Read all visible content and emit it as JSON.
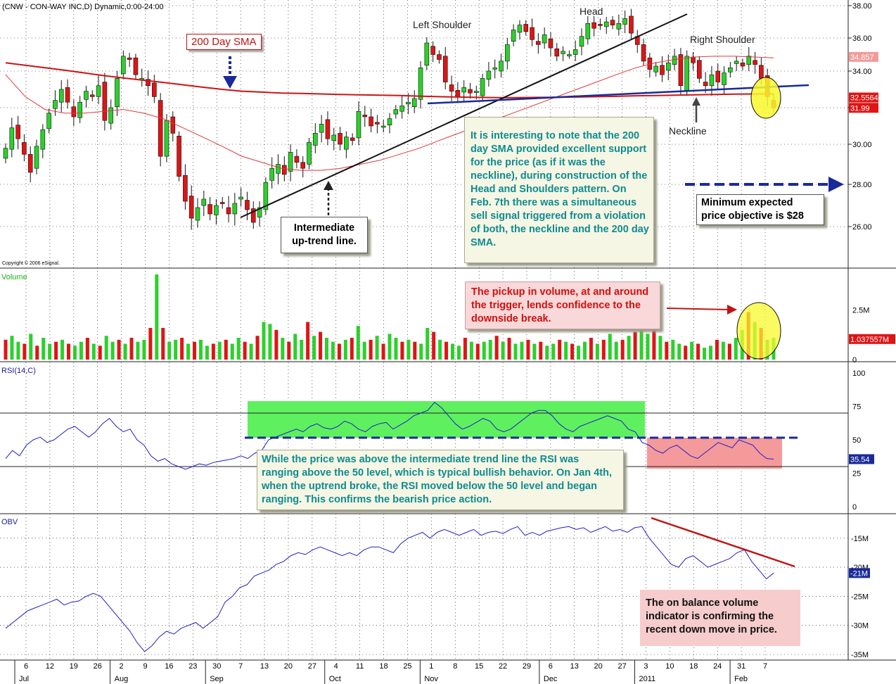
{
  "chart_title": "(CNW - CON-WAY INC,D) Dynamic,0:00-24:00",
  "copyright": "Copyright © 2006 eSignal.",
  "annotations": {
    "sma_label": "200 Day SMA",
    "left_shoulder": "Left Shoulder",
    "head": "Head",
    "right_shoulder": "Right Shoulder",
    "neckline": "Neckline",
    "trend_line": "Intermediate up-trend line.",
    "sma_note": "It is interesting to note that the 200 day SMA provided excellent support for the price (as if it was the neckline), during construction of the Head and Shoulders pattern. On Feb. 7th there was a simultaneous sell signal triggered from a violation of both, the neckline and the 200 day SMA.",
    "objective": "Minimum expected price objective is $28",
    "volume_note": "The pickup in volume, at and around the trigger, lends confidence to the downside break.",
    "rsi_note": "While the price was above the intermediate trend line the RSI was ranging above the 50 level, which is typical bullish behavior. On Jan 4th, when the uptrend broke, the RSI moved below the 50 level and began ranging. This confirms the bearish price action.",
    "obv_note": "The on balance volume indicator is confirming the recent down move in price."
  },
  "colors": {
    "up_candle": "#2bd12b",
    "down_candle": "#e01414",
    "sma200": "#cc1414",
    "sma50": "#dd3a3a",
    "neckline": "#1a2a9a",
    "indicator_line": "#2020c8",
    "rsi_green_zone": "#5ff05f",
    "rsi_red_zone": "#f59a9a",
    "highlight": "#f8f82c"
  },
  "chart_data": [
    {
      "type": "candlestick",
      "panel": "price",
      "title": "(CNW - CON-WAY INC,D) Dynamic,0:00-24:00",
      "y_ticks": [
        38.0,
        36.0,
        34.0,
        32.0,
        30.0,
        28.0,
        26.0
      ],
      "ylim": [
        24.6,
        38.3
      ],
      "value_tags": [
        {
          "label": "34.857",
          "value": 34.857,
          "color": "#f29a9a",
          "text": "#ffffff"
        },
        {
          "label": "32.55645",
          "value": 32.55645,
          "color": "#e01414",
          "text": "#ffffff"
        },
        {
          "label": "31.99",
          "value": 31.99,
          "color": "#e01414",
          "text": "#ffffff"
        }
      ],
      "series": [
        {
          "name": "CNW",
          "closes": [
            29.8,
            30.9,
            30.3,
            29.5,
            28.6,
            29.9,
            30.8,
            31.7,
            32.4,
            33.0,
            32.3,
            31.5,
            32.3,
            32.9,
            32.6,
            33.2,
            31.3,
            32.0,
            33.6,
            34.9,
            34.7,
            33.8,
            33.6,
            33.2,
            32.6,
            29.4,
            31.3,
            30.6,
            28.4,
            27.2,
            26.4,
            26.9,
            27.3,
            26.6,
            27.0,
            27.1,
            26.6,
            27.1,
            27.4,
            26.8,
            26.2,
            26.9,
            28.1,
            28.8,
            29.0,
            28.5,
            29.6,
            29.1,
            28.8,
            30.1,
            30.6,
            31.1,
            30.3,
            30.5,
            30.0,
            30.4,
            30.2,
            31.8,
            31.5,
            31.0,
            31.1,
            31.0,
            31.4,
            31.9,
            32.1,
            32.3,
            32.5,
            34.2,
            35.7,
            35.0,
            34.7,
            33.4,
            32.9,
            32.6,
            33.1,
            32.8,
            32.9,
            33.6,
            34.0,
            34.2,
            34.6,
            35.6,
            36.5,
            36.8,
            36.4,
            35.9,
            35.6,
            36.2,
            35.4,
            34.9,
            35.2,
            35.0,
            35.3,
            36.1,
            36.9,
            36.6,
            36.8,
            37.0,
            36.8,
            36.9,
            37.2,
            36.3,
            35.6,
            34.6,
            34.1,
            34.3,
            33.8,
            34.5,
            34.9,
            33.2,
            34.9,
            34.5,
            33.6,
            33.2,
            33.8,
            33.4,
            33.9,
            34.2,
            34.6,
            34.3,
            34.9,
            34.4,
            33.6,
            32.6,
            31.99
          ]
        }
      ],
      "moving_averages": [
        {
          "name": "200 Day SMA",
          "values": [
            34.5,
            34.35,
            34.2,
            34.05,
            33.9,
            33.75,
            33.62,
            33.5,
            33.38,
            33.25,
            33.12,
            33.0,
            32.9,
            32.85,
            32.8,
            32.78,
            32.75,
            32.72,
            32.7,
            32.68,
            32.66,
            32.63,
            32.6,
            32.58,
            32.56,
            32.55,
            32.55,
            32.56,
            32.57,
            32.58,
            32.6,
            32.62,
            32.65,
            32.66,
            32.68,
            32.7,
            32.72,
            32.74,
            32.75,
            32.76
          ]
        },
        {
          "name": "50 Day SMA",
          "values": [
            33.8,
            32.6,
            31.9,
            31.7,
            31.7,
            31.8,
            31.9,
            31.7,
            31.4,
            30.9,
            30.4,
            29.9,
            29.4,
            29.1,
            28.8,
            28.7,
            28.7,
            28.8,
            29.0,
            29.2,
            29.5,
            29.8,
            30.2,
            30.6,
            31.0,
            31.4,
            31.8,
            32.2,
            32.6,
            33.0,
            33.4,
            33.8,
            34.2,
            34.5,
            34.7,
            34.85,
            34.9,
            34.9,
            34.85,
            34.8
          ]
        }
      ]
    },
    {
      "type": "bar",
      "panel": "volume",
      "title": "Volume",
      "y_ticks": [
        "2.5M",
        "1.037557M",
        "0"
      ],
      "value_tag": {
        "label": "1.037557M",
        "value": 1.037557
      },
      "ylim": [
        0,
        4.3
      ],
      "series": [
        {
          "name": "Volume",
          "values": [
            1.0,
            1.2,
            0.9,
            0.8,
            1.3,
            0.7,
            1.1,
            0.8,
            0.9,
            1.0,
            0.8,
            0.7,
            0.9,
            1.1,
            0.8,
            0.7,
            1.2,
            0.9,
            1.0,
            0.8,
            1.1,
            0.9,
            1.0,
            1.6,
            4.3,
            1.6,
            0.9,
            1.0,
            1.1,
            0.8,
            0.9,
            1.0,
            0.7,
            0.8,
            0.9,
            1.0,
            0.8,
            1.1,
            0.9,
            0.8,
            1.2,
            1.9,
            1.8,
            1.5,
            1.1,
            0.9,
            1.3,
            1.0,
            1.9,
            1.2,
            1.4,
            1.1,
            0.9,
            0.8,
            1.0,
            1.1,
            1.7,
            0.9,
            1.0,
            1.2,
            0.8,
            1.3,
            1.1,
            0.9,
            1.0,
            0.9,
            0.8,
            1.6,
            1.4,
            1.0,
            0.9,
            0.8,
            0.7,
            1.1,
            0.9,
            0.8,
            0.9,
            1.0,
            1.2,
            0.9,
            1.1,
            0.8,
            0.9,
            1.0,
            0.8,
            0.9,
            0.7,
            0.8,
            1.0,
            0.9,
            0.8,
            0.7,
            0.9,
            1.1,
            0.8,
            1.0,
            1.3,
            0.9,
            1.0,
            1.2,
            1.4,
            1.6,
            1.3,
            1.9,
            1.2,
            0.9,
            1.0,
            0.8,
            0.7,
            0.9,
            0.8,
            0.6,
            0.7,
            1.0,
            0.9,
            0.8,
            1.1,
            1.5,
            2.4,
            1.9,
            1.6,
            1.0,
            1.1
          ]
        }
      ]
    },
    {
      "type": "line",
      "panel": "rsi",
      "title": "RSI(14,C)",
      "y_ticks": [
        100,
        75,
        50,
        25,
        0
      ],
      "reference_lines": [
        70,
        30
      ],
      "ylim": [
        0,
        100
      ],
      "value_tag": {
        "label": "35.54",
        "value": 35.54
      },
      "series": [
        {
          "name": "RSI(14,C)",
          "values": [
            36,
            42,
            38,
            46,
            50,
            52,
            48,
            50,
            54,
            58,
            60,
            56,
            52,
            56,
            62,
            66,
            60,
            56,
            58,
            50,
            46,
            38,
            34,
            36,
            32,
            30,
            28,
            30,
            32,
            31,
            33,
            34,
            35,
            36,
            38,
            36,
            40,
            42,
            50,
            52,
            54,
            56,
            58,
            56,
            60,
            62,
            59,
            58,
            60,
            64,
            62,
            58,
            56,
            60,
            62,
            63,
            58,
            61,
            64,
            68,
            70,
            72,
            78,
            74,
            68,
            62,
            58,
            60,
            63,
            66,
            64,
            58,
            56,
            58,
            62,
            66,
            70,
            72,
            72,
            68,
            62,
            58,
            56,
            60,
            62,
            64,
            66,
            68,
            66,
            64,
            58,
            56,
            48,
            46,
            42,
            40,
            44,
            46,
            42,
            38,
            36,
            40,
            44,
            48,
            46,
            44,
            50,
            48,
            46,
            40,
            36,
            35.54
          ]
        }
      ]
    },
    {
      "type": "line",
      "panel": "obv",
      "title": "OBV",
      "y_ticks": [
        "-15M",
        "-20M",
        "-25M",
        "-30M",
        "-35M"
      ],
      "ylim": [
        -35,
        -12
      ],
      "value_tag": {
        "label": "-21M",
        "value": -21
      },
      "series": [
        {
          "name": "OBV",
          "values": [
            -30.5,
            -29.5,
            -28.5,
            -27.5,
            -27.0,
            -26.5,
            -26.0,
            -25.5,
            -26.5,
            -26.0,
            -25.8,
            -25.0,
            -24.5,
            -25.0,
            -26.5,
            -28.0,
            -29.5,
            -31.0,
            -33.0,
            -34.5,
            -33.5,
            -32.0,
            -31.0,
            -31.5,
            -30.5,
            -30.0,
            -29.5,
            -30.5,
            -29.5,
            -28.5,
            -26.0,
            -25.0,
            -23.5,
            -23.0,
            -21.5,
            -21.0,
            -20.5,
            -19.5,
            -19.0,
            -18.0,
            -17.5,
            -17.8,
            -17.0,
            -16.5,
            -17.0,
            -17.5,
            -18.0,
            -17.5,
            -18.0,
            -17.0,
            -16.5,
            -16.5,
            -17.0,
            -17.5,
            -16.0,
            -15.0,
            -14.5,
            -14.0,
            -15.0,
            -14.0,
            -13.5,
            -14.0,
            -14.5,
            -14.0,
            -13.5,
            -14.5,
            -14.0,
            -13.8,
            -14.2,
            -13.5,
            -13.0,
            -14.5,
            -14.0,
            -14.5,
            -13.8,
            -13.5,
            -13.2,
            -13.0,
            -13.5,
            -13.2,
            -14.0,
            -13.5,
            -13.0,
            -13.8,
            -13.5,
            -14.0,
            -13.2,
            -13.0,
            -15.0,
            -16.5,
            -18.0,
            -19.5,
            -20.0,
            -18.5,
            -18.0,
            -19.0,
            -20.0,
            -19.5,
            -19.0,
            -18.5,
            -17.5,
            -17.0,
            -19.0,
            -20.5,
            -22.0,
            -21.0
          ]
        }
      ]
    }
  ],
  "x_axis": {
    "day_ticks": [
      "6",
      "12",
      "19",
      "26",
      "2",
      "9",
      "16",
      "23",
      "30",
      "7",
      "13",
      "20",
      "27",
      "4",
      "11",
      "18",
      "25",
      "1",
      "8",
      "15",
      "22",
      "29",
      "6",
      "13",
      "20",
      "27",
      "3",
      "10",
      "18",
      "24",
      "31",
      "7"
    ],
    "month_labels": [
      "Jul",
      "Aug",
      "Sep",
      "Oct",
      "Nov",
      "Dec",
      "2011",
      "Feb"
    ]
  }
}
